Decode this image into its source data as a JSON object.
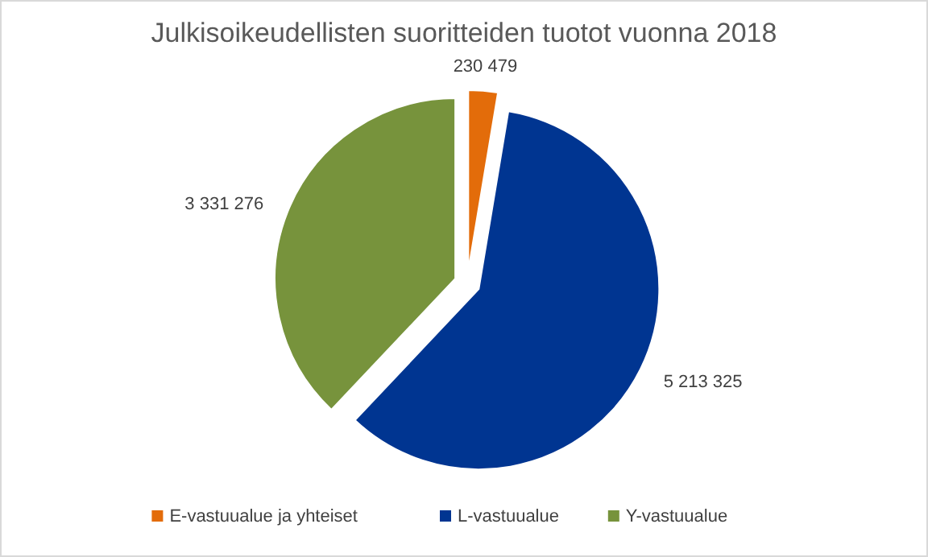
{
  "chart_data": {
    "type": "pie",
    "title": "Julkisoikeudellisten suoritteiden tuotot vuonna 2018",
    "categories": [
      "E-vastuualue ja yhteiset",
      "L-vastuualue",
      "Y-vastuualue"
    ],
    "values": [
      230479,
      5213325,
      3331276
    ],
    "value_labels": [
      "230 479",
      "5 213 325",
      "3 331 276"
    ],
    "colors": [
      "#e36c0a",
      "#003591",
      "#77933c"
    ],
    "legend": "bottom"
  }
}
